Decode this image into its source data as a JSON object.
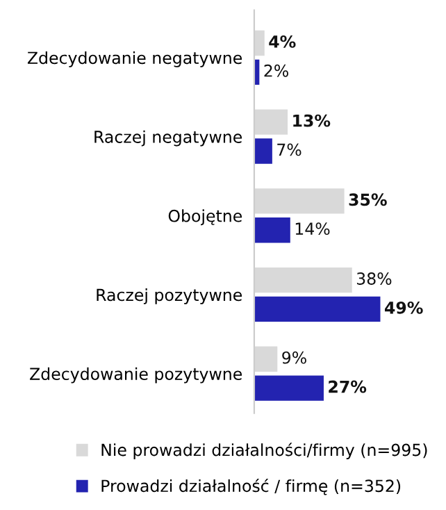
{
  "chart_data": {
    "type": "bar",
    "orientation": "horizontal",
    "legend": "bottom",
    "categories": [
      "Zdecydowanie negatywne",
      "Raczej negatywne",
      "Obojętne",
      "Raczej pozytywne",
      "Zdecydowanie pozytywne"
    ],
    "series": [
      {
        "name": "Nie prowadzi działalności/firmy (n=995)",
        "color": "#d9d9d9",
        "values": [
          4,
          13,
          35,
          38,
          9
        ],
        "value_labels": [
          "4%",
          "13%",
          "35%",
          "38%",
          "9%"
        ]
      },
      {
        "name": "Prowadzi działalność / firmę (n=352)",
        "color": "#2323b0",
        "values": [
          2,
          7,
          14,
          49,
          27
        ],
        "value_labels": [
          "2%",
          "7%",
          "14%",
          "49%",
          "27%"
        ]
      }
    ]
  }
}
